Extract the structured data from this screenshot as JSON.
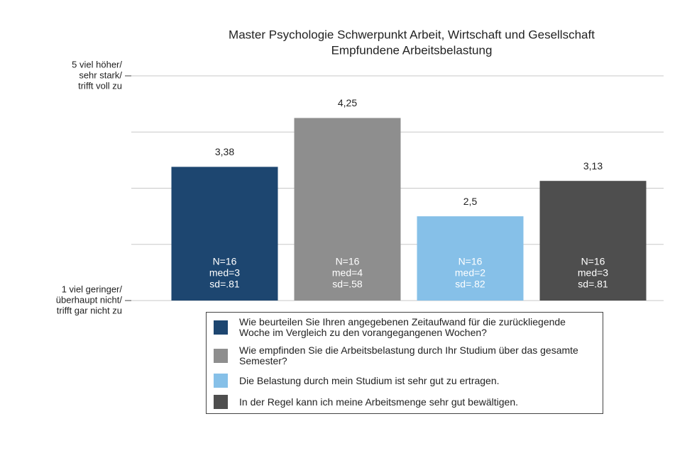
{
  "chart_data": {
    "type": "bar",
    "title": [
      "Master Psychologie Schwerpunkt Arbeit, Wirtschaft und Gesellschaft",
      "Empfundene Arbeitsbelastung"
    ],
    "categories": [
      "Wie beurteilen Sie Ihren angegebenen Zeitaufwand für die zurückliegende Woche im Vergleich zu den vorangegangenen Wochen?",
      "Wie empfinden Sie die Arbeitsbelastung durch Ihr Studium über das gesamte Semester?",
      "Die Belastung durch mein Studium ist sehr gut zu ertragen.",
      "In der Regel kann ich meine Arbeitsmenge sehr gut bewältigen."
    ],
    "values": [
      3.38,
      4.25,
      2.5,
      3.13
    ],
    "value_labels": [
      "3,38",
      "4,25",
      "2,5",
      "3,13"
    ],
    "colors": [
      "#1d4670",
      "#8e8e8e",
      "#86c0e8",
      "#4e4e4e"
    ],
    "bar_notes": [
      [
        "N=16",
        "med=3",
        "sd=.81"
      ],
      [
        "N=16",
        "med=4",
        "sd=.58"
      ],
      [
        "N=16",
        "med=2",
        "sd=.82"
      ],
      [
        "N=16",
        "med=3",
        "sd=.81"
      ]
    ],
    "ylim": [
      1,
      5
    ],
    "yticks": [
      {
        "value": 1,
        "label": [
          "1 viel geringer/",
          "überhaupt nicht/",
          "trifft gar nicht zu"
        ]
      },
      {
        "value": 2,
        "label": null
      },
      {
        "value": 3,
        "label": null
      },
      {
        "value": 4,
        "label": null
      },
      {
        "value": 5,
        "label": [
          "5 viel höher/",
          "sehr stark/",
          "trifft voll zu"
        ]
      }
    ],
    "grid": true
  }
}
